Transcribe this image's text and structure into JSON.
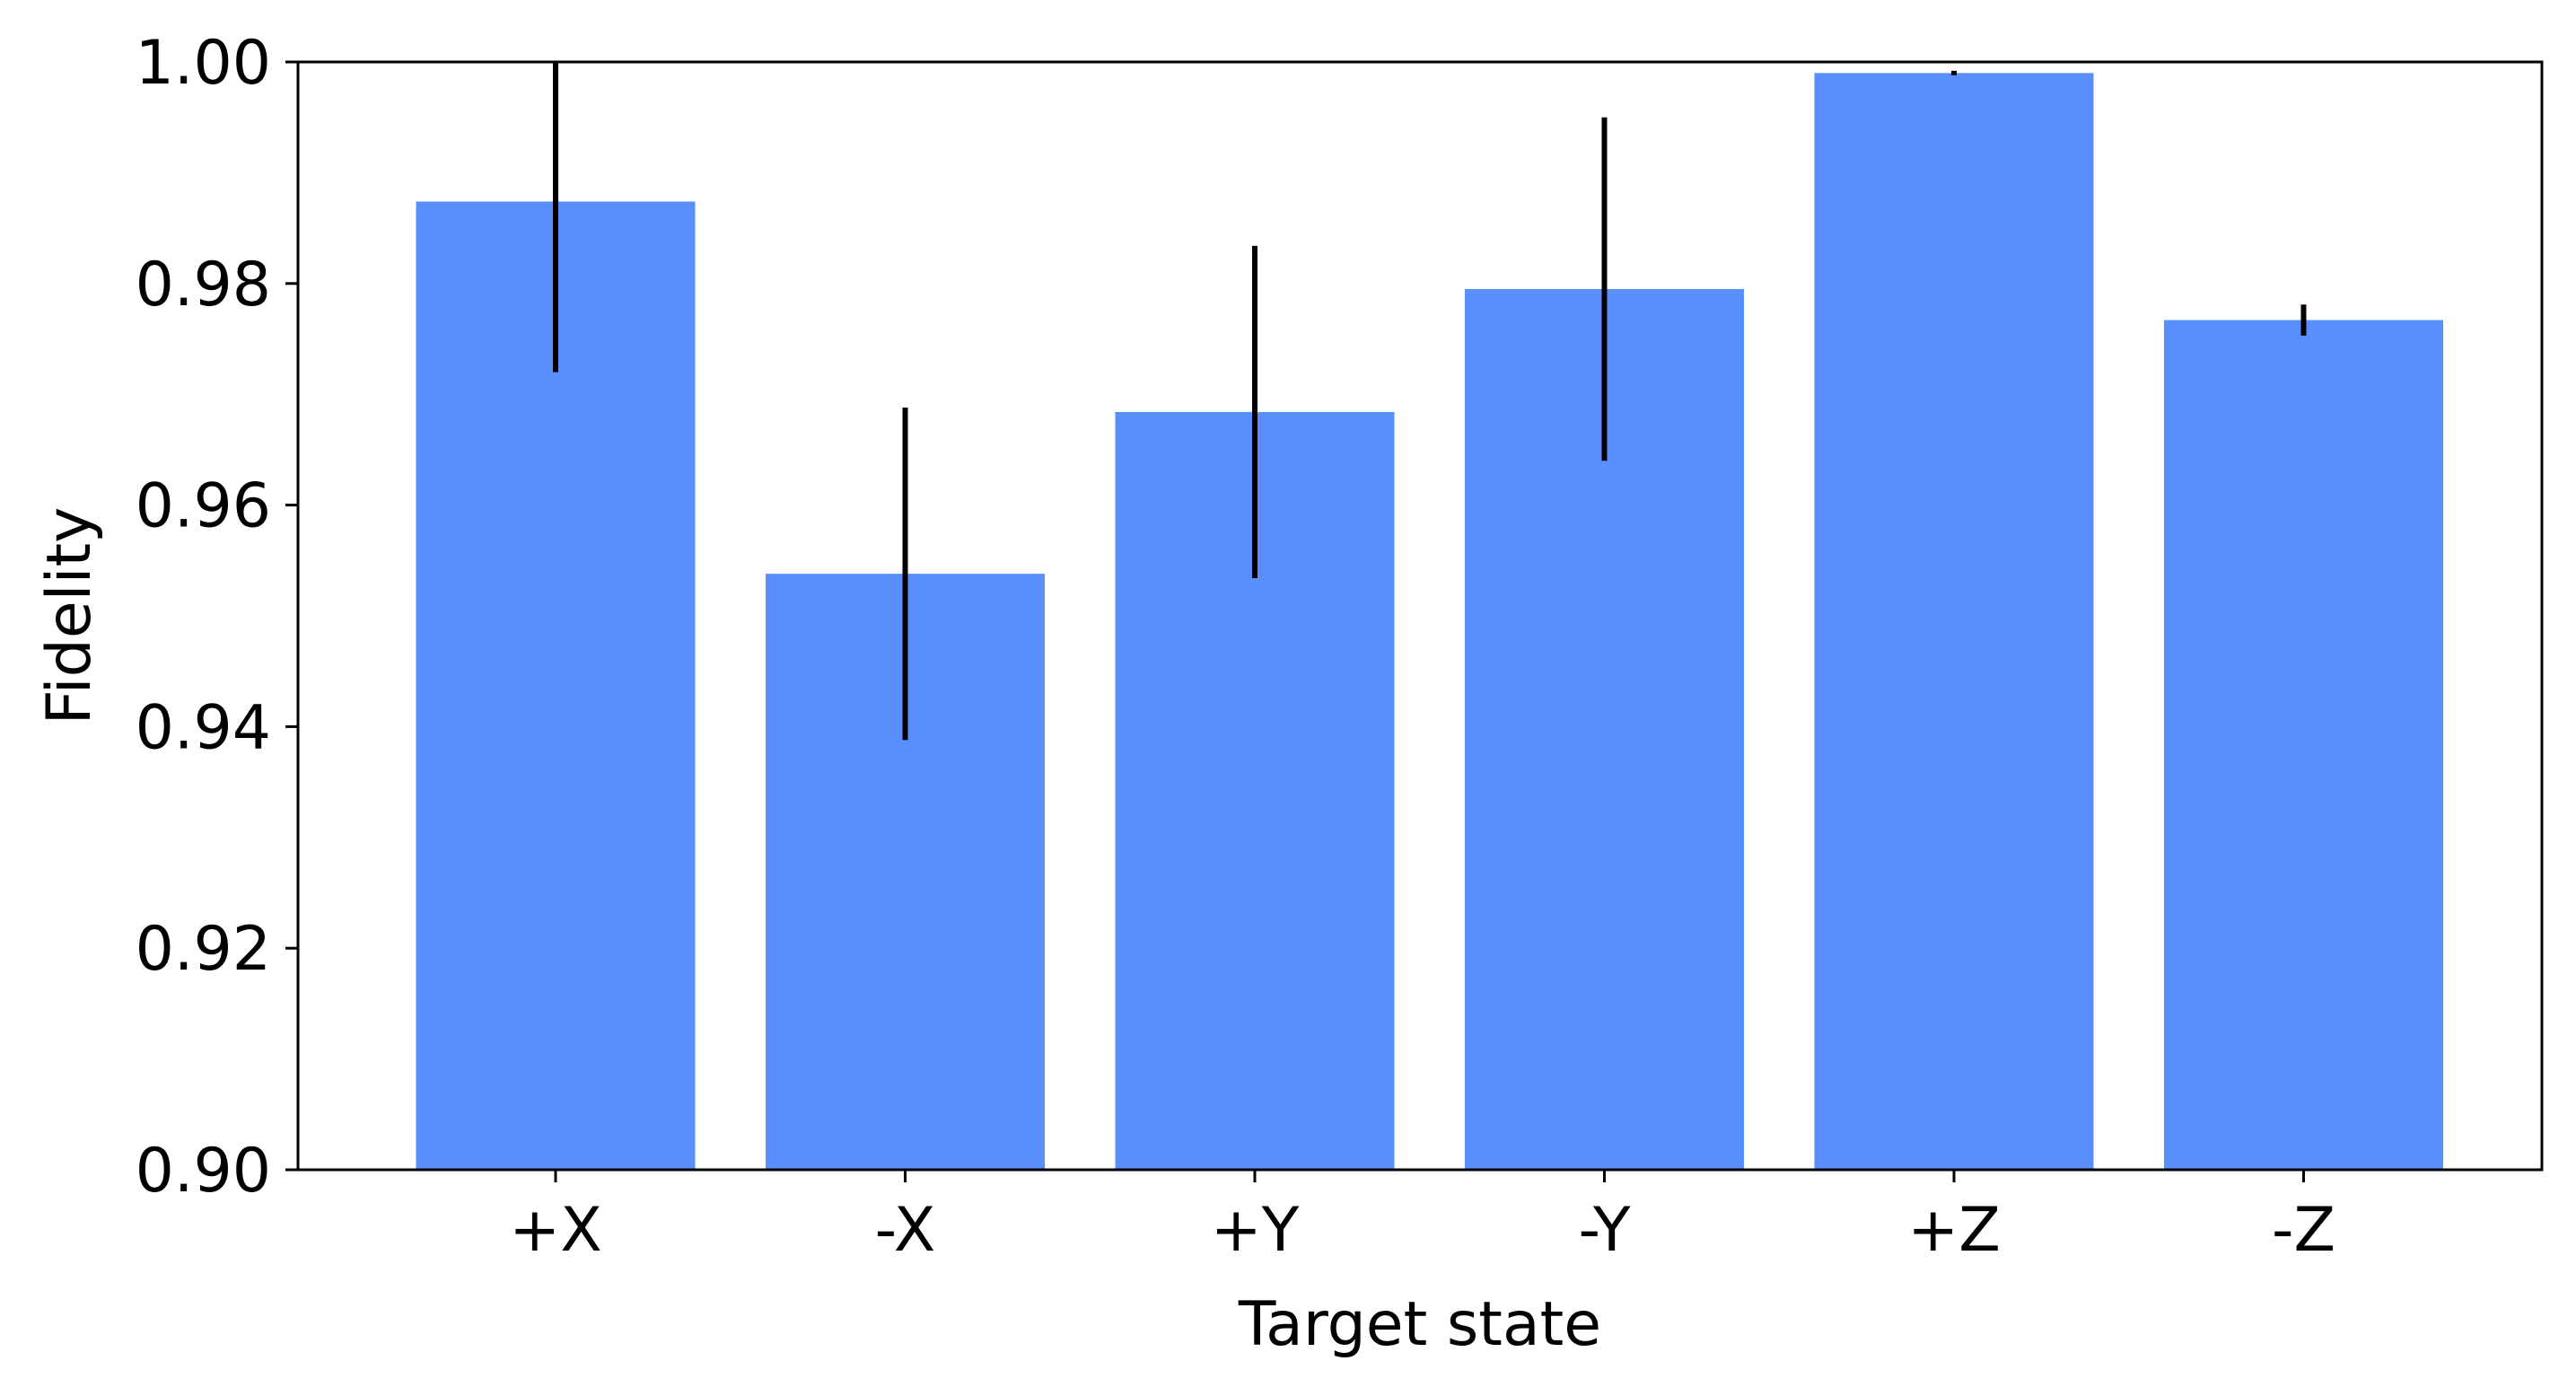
{
  "chart_data": {
    "type": "bar",
    "title": "",
    "xlabel": "Target state",
    "ylabel": "Fidelity",
    "categories": [
      "+X",
      "-X",
      "+Y",
      "-Y",
      "+Z",
      "-Z"
    ],
    "values": [
      0.9874,
      0.9538,
      0.9684,
      0.9795,
      0.999,
      0.9767
    ],
    "errors": [
      0.0154,
      0.015,
      0.015,
      0.0155,
      0.0002,
      0.0014
    ],
    "ylim": [
      0.9,
      1.0
    ],
    "yticks": [
      "0.90",
      "0.92",
      "0.94",
      "0.96",
      "0.98",
      "1.00"
    ],
    "grid": false,
    "colors": {
      "bar": "#598ffc",
      "error": "#000000",
      "axis": "#000000"
    }
  }
}
